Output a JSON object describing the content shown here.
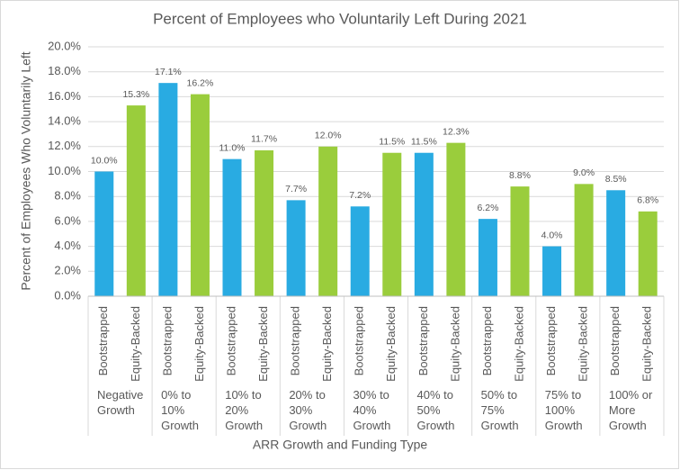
{
  "chart_data": {
    "type": "bar",
    "title": "Percent of Employees who Voluntarily Left During 2021",
    "x_label": "ARR Growth and Funding Type",
    "y_label": "Percent of Employees Who Voluntarily Left",
    "categories": [
      [
        "Negative",
        "Growth"
      ],
      [
        "0% to",
        "10%",
        "Growth"
      ],
      [
        "10% to",
        "20%",
        "Growth"
      ],
      [
        "20% to",
        "30%",
        "Growth"
      ],
      [
        "30% to",
        "40%",
        "Growth"
      ],
      [
        "40% to",
        "50%",
        "Growth"
      ],
      [
        "50% to",
        "75%",
        "Growth"
      ],
      [
        "75% to",
        "100%",
        "Growth"
      ],
      [
        "100% or",
        "More",
        "Growth"
      ]
    ],
    "series": [
      {
        "name": "Bootstrapped",
        "color": "#29abe2",
        "values": [
          10.0,
          17.1,
          11.0,
          7.7,
          7.2,
          11.5,
          6.2,
          4.0,
          8.5
        ],
        "value_labels": [
          "10.0%",
          "17.1%",
          "11.0%",
          "7.7%",
          "7.2%",
          "11.5%",
          "6.2%",
          "4.0%",
          "8.5%"
        ]
      },
      {
        "name": "Equity-Backed",
        "color": "#9acd3c",
        "values": [
          15.3,
          16.2,
          11.7,
          12.0,
          11.5,
          12.3,
          8.8,
          9.0,
          6.8
        ],
        "value_labels": [
          "15.3%",
          "16.2%",
          "11.7%",
          "12.0%",
          "11.5%",
          "12.3%",
          "8.8%",
          "9.0%",
          "6.8%"
        ]
      }
    ],
    "ylim": [
      0,
      20
    ],
    "yticks": [
      {
        "value": 0,
        "label": "0.0%"
      },
      {
        "value": 2,
        "label": "2.0%"
      },
      {
        "value": 4,
        "label": "4.0%"
      },
      {
        "value": 6,
        "label": "6.0%"
      },
      {
        "value": 8,
        "label": "8.0%"
      },
      {
        "value": 10,
        "label": "10.0%"
      },
      {
        "value": 12,
        "label": "12.0%"
      },
      {
        "value": 14,
        "label": "14.0%"
      },
      {
        "value": 16,
        "label": "16.0%"
      },
      {
        "value": 18,
        "label": "18.0%"
      },
      {
        "value": 20,
        "label": "20.0%"
      }
    ],
    "grid": true
  }
}
